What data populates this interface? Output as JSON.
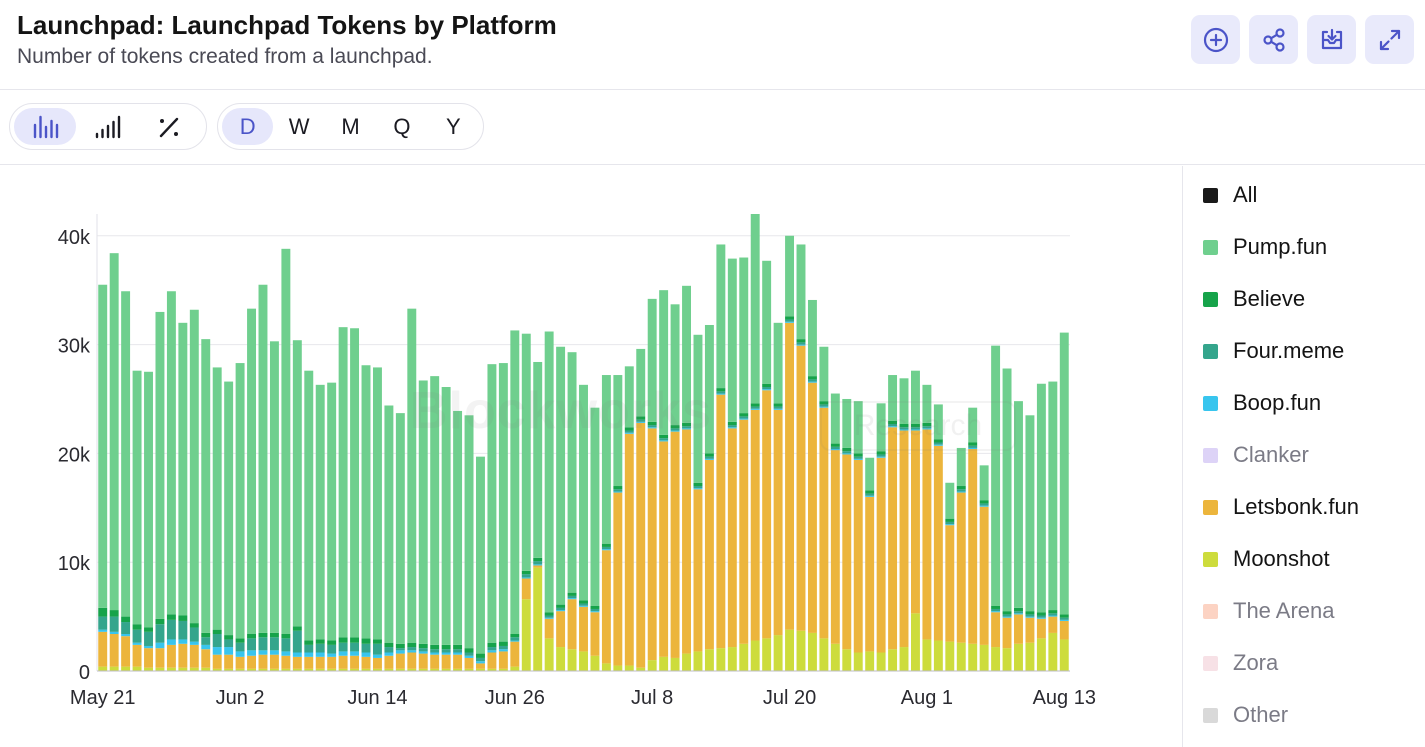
{
  "header": {
    "title": "Launchpad: Launchpad Tokens by Platform",
    "subtitle": "Number of tokens created from a launchpad."
  },
  "actions": [
    {
      "name": "add-button",
      "icon": "plus-circle-icon"
    },
    {
      "name": "share-button",
      "icon": "share-icon"
    },
    {
      "name": "download-button",
      "icon": "download-tray-icon"
    },
    {
      "name": "expand-button",
      "icon": "expand-arrows-icon"
    }
  ],
  "chart_types": [
    {
      "icon": "bar-chart-icon",
      "active": true
    },
    {
      "icon": "signal-bars-icon",
      "active": false
    },
    {
      "icon": "percent-icon",
      "active": false
    }
  ],
  "periods": [
    {
      "label": "D",
      "active": true
    },
    {
      "label": "W",
      "active": false
    },
    {
      "label": "M",
      "active": false
    },
    {
      "label": "Q",
      "active": false
    },
    {
      "label": "Y",
      "active": false
    }
  ],
  "watermark": {
    "brand": "Blockworks",
    "tag": "Research"
  },
  "legend": [
    {
      "label": "All",
      "color": "#1a1a1a",
      "visible": true
    },
    {
      "label": "Pump.fun",
      "color": "#6fcf8e",
      "visible": true
    },
    {
      "label": "Believe",
      "color": "#16a34a",
      "visible": true
    },
    {
      "label": "Four.meme",
      "color": "#34a58c",
      "visible": true
    },
    {
      "label": "Boop.fun",
      "color": "#38c5ee",
      "visible": true
    },
    {
      "label": "Clanker",
      "color": "#ddd3f7",
      "visible": false
    },
    {
      "label": "Letsbonk.fun",
      "color": "#ecb53c",
      "visible": true
    },
    {
      "label": "Moonshot",
      "color": "#cddc3c",
      "visible": true
    },
    {
      "label": "The Arena",
      "color": "#fcd3c3",
      "visible": false
    },
    {
      "label": "Zora",
      "color": "#f7e1e6",
      "visible": false
    },
    {
      "label": "Other",
      "color": "#d9d9d9",
      "visible": false
    }
  ],
  "chart_data": {
    "type": "bar",
    "stacked": true,
    "x_tick_labels": [
      "May 21",
      "Jun 2",
      "Jun 14",
      "Jun 26",
      "Jul 8",
      "Jul 20",
      "Aug 1",
      "Aug 13"
    ],
    "y_tick_labels": [
      "0",
      "10k",
      "20k",
      "30k",
      "40k"
    ],
    "ylim": [
      0,
      42000
    ],
    "grid": true,
    "legend_position": "right",
    "categories": [
      "May 21",
      "May 22",
      "May 23",
      "May 24",
      "May 25",
      "May 26",
      "May 27",
      "May 28",
      "May 29",
      "May 30",
      "May 31",
      "Jun 1",
      "Jun 2",
      "Jun 3",
      "Jun 4",
      "Jun 5",
      "Jun 6",
      "Jun 7",
      "Jun 8",
      "Jun 9",
      "Jun 10",
      "Jun 11",
      "Jun 12",
      "Jun 13",
      "Jun 14",
      "Jun 15",
      "Jun 16",
      "Jun 17",
      "Jun 18",
      "Jun 19",
      "Jun 20",
      "Jun 21",
      "Jun 22",
      "Jun 23",
      "Jun 24",
      "Jun 25",
      "Jun 26",
      "Jun 27",
      "Jun 28",
      "Jun 29",
      "Jun 30",
      "Jul 1",
      "Jul 2",
      "Jul 3",
      "Jul 4",
      "Jul 5",
      "Jul 6",
      "Jul 7",
      "Jul 8",
      "Jul 9",
      "Jul 10",
      "Jul 11",
      "Jul 12",
      "Jul 13",
      "Jul 14",
      "Jul 15",
      "Jul 16",
      "Jul 17",
      "Jul 18",
      "Jul 19",
      "Jul 20",
      "Jul 21",
      "Jul 22",
      "Jul 23",
      "Jul 24",
      "Jul 25",
      "Jul 26",
      "Jul 27",
      "Jul 28",
      "Jul 29",
      "Jul 30",
      "Jul 31",
      "Aug 1",
      "Aug 2",
      "Aug 3",
      "Aug 4",
      "Aug 5",
      "Aug 6",
      "Aug 7",
      "Aug 8",
      "Aug 9",
      "Aug 10",
      "Aug 11",
      "Aug 12",
      "Aug 13"
    ],
    "series": [
      {
        "name": "Moonshot",
        "color": "#cddc3c",
        "values": [
          400,
          400,
          400,
          400,
          300,
          300,
          300,
          300,
          300,
          300,
          200,
          200,
          200,
          200,
          200,
          200,
          200,
          200,
          200,
          200,
          200,
          200,
          200,
          200,
          200,
          200,
          200,
          200,
          200,
          200,
          200,
          200,
          200,
          200,
          200,
          200,
          400,
          6600,
          9500,
          3000,
          2200,
          2000,
          1800,
          1400,
          700,
          500,
          500,
          300,
          1000,
          1300,
          1200,
          1600,
          1800,
          2000,
          2100,
          2200,
          2500,
          2800,
          3000,
          3300,
          3800,
          3700,
          3500,
          3000,
          2500,
          2000,
          1700,
          1800,
          1700,
          2000,
          2200,
          5300,
          2900,
          2800,
          2700,
          2600,
          2500,
          2400,
          2200,
          2100,
          2500,
          2600,
          3000,
          3500,
          2900
        ]
      },
      {
        "name": "Letsbonk.fun",
        "color": "#ecb53c",
        "values": [
          3200,
          3000,
          2800,
          2000,
          1800,
          1800,
          2100,
          2200,
          2100,
          1700,
          1300,
          1300,
          1100,
          1200,
          1300,
          1300,
          1200,
          1100,
          1100,
          1100,
          1100,
          1200,
          1200,
          1100,
          1000,
          1200,
          1400,
          1500,
          1400,
          1300,
          1300,
          1300,
          1000,
          500,
          1500,
          1600,
          2300,
          1900,
          200,
          1800,
          3300,
          4600,
          4100,
          4000,
          10400,
          15900,
          21300,
          22500,
          21300,
          19800,
          20800,
          20600,
          14900,
          17400,
          23300,
          20100,
          20600,
          21200,
          22800,
          20700,
          28200,
          26200,
          23000,
          21200,
          17800,
          17900,
          17700,
          14200,
          17900,
          20400,
          19900,
          16800,
          19300,
          17900,
          10700,
          13800,
          17900,
          12700,
          3200,
          2800,
          2700,
          2300,
          1800,
          1500,
          1700
        ]
      },
      {
        "name": "Boop.fun",
        "color": "#38c5ee",
        "values": [
          200,
          200,
          200,
          200,
          200,
          500,
          500,
          400,
          300,
          400,
          700,
          700,
          500,
          500,
          400,
          400,
          400,
          400,
          400,
          400,
          300,
          400,
          400,
          400,
          300,
          300,
          300,
          200,
          200,
          200,
          200,
          200,
          200,
          200,
          200,
          200,
          100,
          100,
          100,
          100,
          100,
          100,
          100,
          100,
          100,
          100,
          100,
          100,
          100,
          100,
          100,
          100,
          100,
          100,
          100,
          100,
          100,
          100,
          100,
          100,
          100,
          100,
          100,
          100,
          100,
          100,
          100,
          100,
          100,
          100,
          100,
          100,
          100,
          100,
          100,
          100,
          100,
          100,
          100,
          100,
          100,
          100,
          100,
          100,
          100
        ]
      },
      {
        "name": "Four.meme",
        "color": "#34a58c",
        "values": [
          1200,
          1400,
          1100,
          1200,
          1300,
          1700,
          1800,
          1700,
          1300,
          700,
          1200,
          700,
          800,
          1100,
          1200,
          1200,
          1200,
          2000,
          700,
          800,
          800,
          800,
          800,
          800,
          1000,
          500,
          200,
          300,
          300,
          300,
          300,
          300,
          300,
          300,
          300,
          300,
          300,
          300,
          300,
          200,
          200,
          200,
          200,
          200,
          200,
          200,
          200,
          200,
          200,
          200,
          200,
          200,
          200,
          200,
          200,
          200,
          200,
          200,
          200,
          200,
          200,
          200,
          200,
          200,
          200,
          200,
          200,
          200,
          200,
          200,
          200,
          200,
          200,
          200,
          200,
          200,
          200,
          200,
          200,
          200,
          200,
          200,
          200,
          200,
          200
        ]
      },
      {
        "name": "Believe",
        "color": "#16a34a",
        "values": [
          800,
          600,
          500,
          500,
          400,
          500,
          500,
          500,
          400,
          400,
          400,
          400,
          400,
          400,
          400,
          400,
          400,
          400,
          400,
          400,
          400,
          500,
          500,
          500,
          400,
          400,
          400,
          400,
          400,
          400,
          400,
          400,
          400,
          400,
          400,
          400,
          300,
          300,
          300,
          300,
          300,
          300,
          300,
          300,
          300,
          300,
          300,
          300,
          300,
          300,
          300,
          300,
          300,
          300,
          300,
          300,
          300,
          300,
          300,
          300,
          300,
          300,
          300,
          300,
          300,
          300,
          300,
          300,
          300,
          300,
          300,
          300,
          300,
          300,
          300,
          300,
          300,
          300,
          300,
          300,
          300,
          300,
          300,
          300,
          300
        ]
      },
      {
        "name": "Pump.fun",
        "color": "#6fcf8e",
        "values": [
          29700,
          32800,
          29900,
          23300,
          23500,
          28200,
          29700,
          26900,
          28800,
          27000,
          24100,
          23300,
          25300,
          29900,
          32000,
          26800,
          35400,
          26300,
          24800,
          23400,
          23700,
          28500,
          28400,
          25100,
          25000,
          21800,
          21200,
          30700,
          24200,
          24700,
          23700,
          21500,
          21400,
          18100,
          25600,
          25600,
          27900,
          21800,
          18000,
          25800,
          23700,
          22100,
          19800,
          18200,
          15500,
          10200,
          5600,
          6200,
          11300,
          13300,
          11100,
          12600,
          13600,
          11800,
          13200,
          15000,
          14300,
          17400,
          11300,
          7400,
          7400,
          8700,
          7000,
          5000,
          4600,
          4500,
          4800,
          3000,
          4400,
          4200,
          4200,
          4900,
          3500,
          3200,
          3300,
          3500,
          3200,
          3200,
          23900,
          22300,
          19000,
          18000,
          21000,
          21000,
          25900
        ]
      }
    ]
  }
}
